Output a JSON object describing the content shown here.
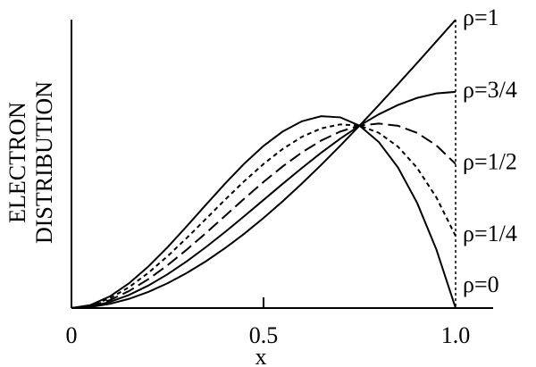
{
  "chart_data": {
    "type": "line",
    "xlabel": "x",
    "ylabel": [
      "ELECTRON",
      "DISTRIBUTION"
    ],
    "x": [
      0,
      0.05,
      0.1,
      0.15,
      0.2,
      0.25,
      0.3,
      0.35,
      0.4,
      0.45,
      0.5,
      0.55,
      0.6,
      0.65,
      0.7,
      0.75,
      0.8,
      0.85,
      0.9,
      0.95,
      1.0
    ],
    "xlim": [
      0,
      1
    ],
    "xticks": [
      0,
      0.5,
      {
        "value": 1,
        "label": "1.0"
      }
    ],
    "ylim": [
      0,
      0.7
    ],
    "series": [
      {
        "name": "ρ=1",
        "color": "#000000",
        "dash": "none",
        "values": [
          0,
          0.0025,
          0.0097,
          0.0214,
          0.0373,
          0.0573,
          0.081,
          0.1082,
          0.1387,
          0.1721,
          0.2083,
          0.247,
          0.288,
          0.331,
          0.3757,
          0.4219,
          0.4693,
          0.5178,
          0.567,
          0.6167,
          0.6667
        ]
      },
      {
        "name": "ρ=3/4",
        "color": "#000000",
        "dash": "none",
        "values": [
          0,
          0.0036,
          0.014,
          0.0304,
          0.052,
          0.0781,
          0.108,
          0.1409,
          0.176,
          0.2126,
          0.25,
          0.2874,
          0.324,
          0.3591,
          0.392,
          0.4219,
          0.448,
          0.4696,
          0.486,
          0.4964,
          0.5
        ]
      },
      {
        "name": "ρ=1/2",
        "color": "#000000",
        "dash": "14,6",
        "values": [
          0,
          0.0048,
          0.0183,
          0.0394,
          0.0667,
          0.099,
          0.135,
          0.1735,
          0.2133,
          0.2531,
          0.2917,
          0.3277,
          0.36,
          0.3873,
          0.4083,
          0.4219,
          0.4267,
          0.4215,
          0.405,
          0.3761,
          0.3333
        ]
      },
      {
        "name": "ρ=1/4",
        "color": "#000000",
        "dash": "5,4",
        "values": [
          0,
          0.006,
          0.0227,
          0.0484,
          0.0813,
          0.1198,
          0.162,
          0.2062,
          0.2507,
          0.2936,
          0.3333,
          0.368,
          0.396,
          0.4155,
          0.4247,
          0.4219,
          0.4053,
          0.3733,
          0.324,
          0.2557,
          0.1667
        ]
      },
      {
        "name": "ρ=0",
        "color": "#000000",
        "dash": "none",
        "values": [
          0,
          0.0071,
          0.027,
          0.0574,
          0.096,
          0.1406,
          0.189,
          0.2389,
          0.288,
          0.3341,
          0.375,
          0.4084,
          0.432,
          0.4436,
          0.441,
          0.4219,
          0.384,
          0.3251,
          0.243,
          0.1354,
          0
        ]
      }
    ]
  }
}
